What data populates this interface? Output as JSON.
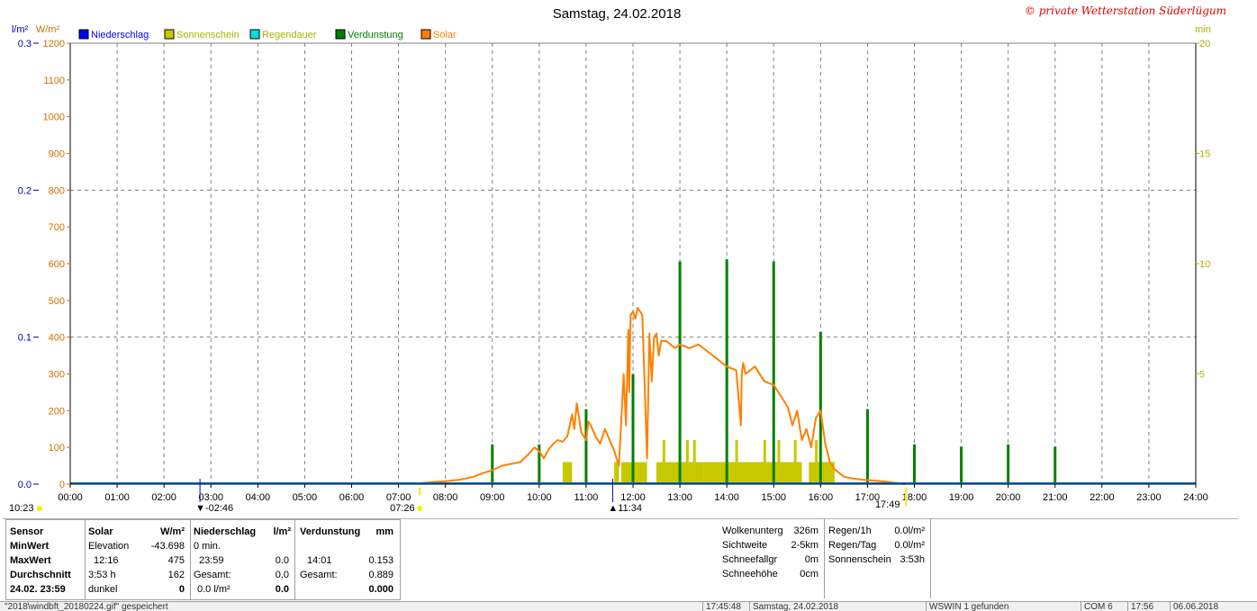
{
  "chart_data": {
    "type": "line",
    "title": "Samstag, 24.02.2018",
    "copyright": "© private Wetterstation Süderlügum",
    "left_axis_1_unit": "l/m²",
    "left_axis_2_unit": "W/m²",
    "right_axis_unit": "min",
    "left_axis_1_ticks": [
      "0.0",
      "0.1",
      "0.2",
      "0.3"
    ],
    "left_axis_1_range": [
      0,
      0.3
    ],
    "left_axis_2_ticks": [
      "0",
      "100",
      "200",
      "300",
      "400",
      "500",
      "600",
      "700",
      "800",
      "900",
      "1000",
      "1100",
      "1200"
    ],
    "left_axis_2_range": [
      0,
      1200
    ],
    "right_axis_ticks": [
      "5",
      "10",
      "15",
      "20"
    ],
    "right_axis_range": [
      0,
      20
    ],
    "x_ticks": [
      "00:00",
      "01:00",
      "02:00",
      "03:00",
      "04:00",
      "05:00",
      "06:00",
      "07:00",
      "08:00",
      "09:00",
      "10:00",
      "11:00",
      "12:00",
      "13:00",
      "14:00",
      "15:00",
      "16:00",
      "17:00",
      "18:00",
      "19:00",
      "20:00",
      "21:00",
      "22:00",
      "23:00",
      "24:00"
    ],
    "x_range_hours": [
      0,
      24
    ],
    "grid": true,
    "legend_position": "top",
    "legend": [
      {
        "name": "Niederschlag",
        "color": "#0000ff"
      },
      {
        "name": "Sonnenschein",
        "color": "#c8c800"
      },
      {
        "name": "Regendauer",
        "color": "#00e0e0"
      },
      {
        "name": "Verdunstung",
        "color": "#008000"
      },
      {
        "name": "Solar",
        "color": "#ff8000"
      }
    ],
    "markers": {
      "left": "10:23",
      "min_time": "02:46",
      "sunrise": "07:26",
      "max_time": "11:34",
      "sunset": "17:49"
    },
    "series": [
      {
        "name": "Solar",
        "color": "#ff8000",
        "axis": "W/m²",
        "x": [
          7.5,
          8.0,
          8.3,
          8.6,
          8.8,
          9.0,
          9.2,
          9.4,
          9.6,
          9.8,
          9.9,
          10.0,
          10.1,
          10.2,
          10.3,
          10.4,
          10.5,
          10.6,
          10.7,
          10.75,
          10.8,
          10.9,
          11.0,
          11.05,
          11.1,
          11.2,
          11.3,
          11.4,
          11.5,
          11.6,
          11.7,
          11.8,
          11.85,
          11.9,
          11.92,
          11.95,
          12.0,
          12.05,
          12.1,
          12.2,
          12.3,
          12.35,
          12.4,
          12.45,
          12.5,
          12.55,
          12.6,
          12.7,
          12.8,
          12.9,
          13.0,
          13.2,
          13.4,
          13.6,
          13.8,
          14.0,
          14.2,
          14.3,
          14.32,
          14.35,
          14.4,
          14.6,
          14.8,
          15.0,
          15.1,
          15.2,
          15.3,
          15.4,
          15.5,
          15.6,
          15.7,
          15.8,
          15.9,
          16.0,
          16.1,
          16.2,
          16.3,
          16.4,
          16.5,
          16.7,
          16.9,
          17.1,
          17.3,
          17.5,
          17.8
        ],
        "y": [
          3,
          8,
          12,
          20,
          30,
          38,
          50,
          55,
          60,
          85,
          100,
          90,
          70,
          95,
          110,
          120,
          115,
          130,
          190,
          150,
          220,
          140,
          120,
          170,
          160,
          130,
          110,
          150,
          120,
          90,
          50,
          300,
          160,
          420,
          250,
          460,
          470,
          450,
          480,
          460,
          70,
          410,
          280,
          400,
          410,
          350,
          390,
          390,
          380,
          370,
          380,
          370,
          380,
          360,
          340,
          320,
          310,
          160,
          300,
          330,
          300,
          320,
          280,
          270,
          250,
          230,
          210,
          160,
          200,
          120,
          150,
          100,
          180,
          200,
          110,
          60,
          40,
          30,
          20,
          15,
          12,
          10,
          8,
          5,
          0
        ]
      },
      {
        "name": "Verdunstung",
        "color": "#008000",
        "axis": "min",
        "x": [
          9.0,
          10.0,
          11.0,
          12.0,
          13.0,
          14.0,
          15.0,
          16.0,
          17.0,
          18.0,
          19.0,
          20.0,
          21.0
        ],
        "y": [
          1.8,
          1.8,
          3.4,
          5.0,
          10.1,
          10.2,
          10.1,
          6.9,
          3.4,
          1.8,
          1.7,
          1.8,
          1.7
        ]
      },
      {
        "name": "Sonnenschein",
        "color": "#c8c800",
        "axis": "min",
        "intervals": [
          [
            10.5,
            10.7,
            1.0
          ],
          [
            11.6,
            11.7,
            1.0
          ],
          [
            11.75,
            12.3,
            1.0
          ],
          [
            12.5,
            13.5,
            1.0
          ],
          [
            13.5,
            15.6,
            1.0
          ],
          [
            15.75,
            16.3,
            1.0
          ]
        ],
        "spikes": [
          [
            12.65,
            2.0
          ],
          [
            13.15,
            2.0
          ],
          [
            13.3,
            2.0
          ],
          [
            14.2,
            2.0
          ],
          [
            14.8,
            2.0
          ],
          [
            15.1,
            2.0
          ],
          [
            15.45,
            2.0
          ],
          [
            15.9,
            2.0
          ]
        ]
      },
      {
        "name": "Niederschlag",
        "color": "#0000ff",
        "axis": "l/m²",
        "x": [
          0,
          24
        ],
        "y": [
          0,
          0
        ]
      }
    ]
  },
  "stats": {
    "headers": {
      "sensor": "Sensor",
      "solar": "Solar",
      "solar_unit": "W/m²",
      "niederschlag": "Niederschlag",
      "niederschlag_unit": "l/m²",
      "verdunstung": "Verdunstung",
      "verdunstung_unit": "mm"
    },
    "rows": {
      "min": {
        "label": "MinWert",
        "solar_a": "Elevation",
        "solar_b": "-43.698",
        "nied_a": "0 min.",
        "nied_b": "",
        "verd_a": "",
        "verd_b": ""
      },
      "max": {
        "label": "MaxWert",
        "solar_a": "12:16",
        "solar_b": "475",
        "nied_a": "23:59",
        "nied_b": "0.0",
        "verd_a": "14:01",
        "verd_b": "0.153"
      },
      "avg": {
        "label": "Durchschnitt",
        "solar_a": "3:53 h",
        "solar_b": "162",
        "nied_a": "Gesamt:",
        "nied_b": "0.0",
        "verd_a": "Gesamt:",
        "verd_b": "0.889"
      },
      "date": {
        "label": "24.02. 23:59",
        "solar_a": "dunkel",
        "solar_b": "0",
        "nied_a": "0.0 l/m²",
        "nied_b": "0.0",
        "verd_a": "",
        "verd_b": "0.000"
      }
    },
    "weather": [
      {
        "label": "Wolkenunterg",
        "value": "326m"
      },
      {
        "label": "Sichtweite",
        "value": "2-5km"
      },
      {
        "label": "Schneefallgr",
        "value": "0m"
      },
      {
        "label": "Schneehöhe",
        "value": "0cm"
      }
    ],
    "rain": [
      {
        "label": "Regen/1h",
        "value": "0.0l/m²"
      },
      {
        "label": "Regen/Tag",
        "value": "0.0l/m²"
      },
      {
        "label": "Sonnenschein",
        "value": "3:53h"
      }
    ]
  },
  "status_bar": {
    "file": "\"2018\\windbft_20180224.gif\" gespeichert",
    "time1": "17:45:48",
    "date": "Samstag, 24.02.2018",
    "found": "WSWIN 1 gefunden",
    "com": "COM 6",
    "time2": "17:56",
    "date2": "06.06.2018"
  }
}
